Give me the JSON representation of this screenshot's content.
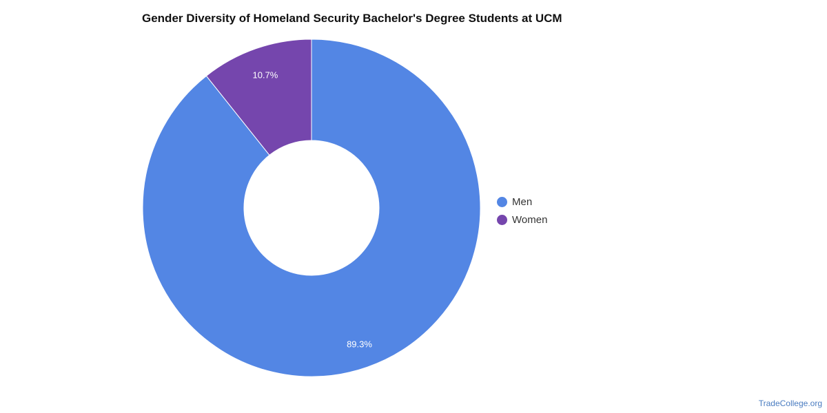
{
  "chart_data": {
    "type": "pie",
    "title": "Gender Diversity of Homeland Security Bachelor's Degree Students at UCM",
    "categories": [
      "Men",
      "Women"
    ],
    "values": [
      89.3,
      10.7
    ],
    "labels": [
      "89.3%",
      "10.7%"
    ],
    "colors": [
      "#5386e4",
      "#7546ad"
    ],
    "donut": true,
    "legend": "right"
  },
  "legend": {
    "items": [
      {
        "label": "Men",
        "color": "#5386e4"
      },
      {
        "label": "Women",
        "color": "#7546ad"
      }
    ]
  },
  "footer": {
    "credit": "TradeCollege.org"
  }
}
